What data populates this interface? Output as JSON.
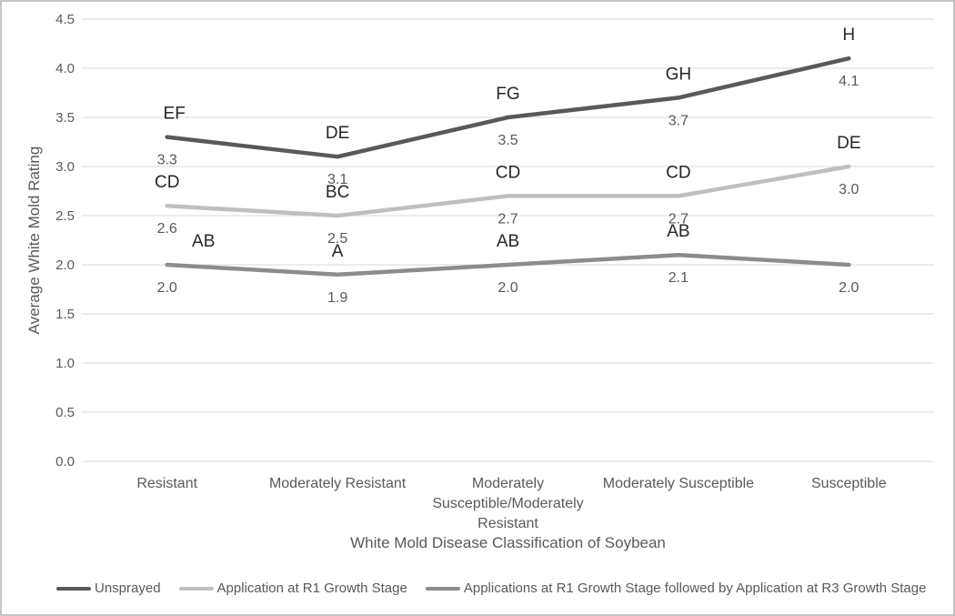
{
  "frame": {
    "background": "#ffffff",
    "border_color": "#c6c6c6"
  },
  "chart_data": {
    "type": "line",
    "title": "",
    "xlabel": "White Mold Disease Classification of Soybean",
    "ylabel": "Average White Mold Rating",
    "categories": [
      "Resistant",
      "Moderately Resistant",
      "Moderately Susceptible/Moderately Resistant",
      "Moderately Susceptible",
      "Susceptible"
    ],
    "categories_wrapped": [
      [
        "Resistant"
      ],
      [
        "Moderately Resistant"
      ],
      [
        "Moderately",
        "Susceptible/Moderately",
        "Resistant"
      ],
      [
        "Moderately Susceptible"
      ],
      [
        "Susceptible"
      ]
    ],
    "ylim": [
      0,
      4.5
    ],
    "ytick_step": 0.5,
    "ytick_labels": [
      "0.0",
      "0.5",
      "1.0",
      "1.5",
      "2.0",
      "2.5",
      "3.0",
      "3.5",
      "4.0",
      "4.5"
    ],
    "grid": true,
    "gridline_color": "#d9d9d9",
    "legend_position": "bottom",
    "letter_label_color": "#262626",
    "value_label_color": "#595959",
    "axis_text_color": "#595959",
    "series": [
      {
        "name": "Unsprayed",
        "color": "#595959",
        "values": [
          3.3,
          3.1,
          3.5,
          3.7,
          4.1
        ],
        "value_labels": [
          "3.3",
          "3.1",
          "3.5",
          "3.7",
          "4.1"
        ],
        "letter_labels": [
          "EF",
          "DE",
          "FG",
          "GH",
          "H"
        ]
      },
      {
        "name": "Application at R1 Growth Stage",
        "color": "#bfbfbf",
        "values": [
          2.6,
          2.5,
          2.7,
          2.7,
          3.0
        ],
        "value_labels": [
          "2.6",
          "2.5",
          "2.7",
          "2.7",
          "3.0"
        ],
        "letter_labels": [
          "CD",
          "BC",
          "CD",
          "CD",
          "DE"
        ]
      },
      {
        "name": "Applications at R1 Growth Stage followed by Application at R3 Growth Stage",
        "color": "#8c8c8c",
        "values": [
          2.0,
          1.9,
          2.0,
          2.1,
          2.0
        ],
        "value_labels": [
          "2.0",
          "1.9",
          "2.0",
          "2.1",
          "2.0"
        ],
        "letter_labels": [
          "AB",
          "A",
          "AB",
          "AB",
          ""
        ]
      }
    ]
  }
}
